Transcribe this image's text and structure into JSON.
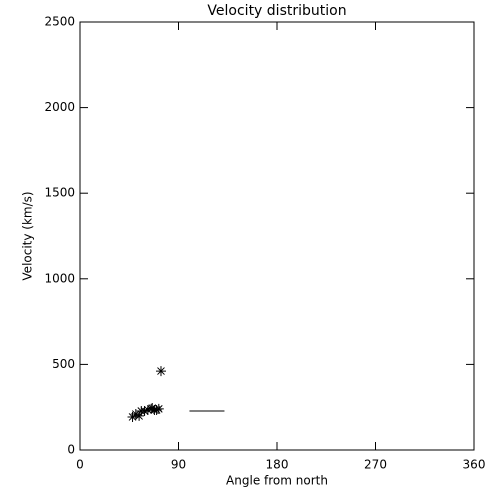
{
  "chart_data": {
    "type": "scatter",
    "title": "Velocity distribution",
    "x_label": "Angle from north",
    "y_label": "Velocity (km/s)",
    "series": [
      {
        "color": "#000000",
        "marker": "asterisk",
        "x": [
          48,
          51,
          54,
          56,
          59,
          62,
          65,
          66,
          68,
          70,
          72,
          74
        ],
        "values": [
          193,
          210,
          199,
          228,
          228,
          234,
          240,
          245,
          234,
          234,
          240,
          461
        ]
      }
    ],
    "segment": {
      "x": [
        100,
        132
      ],
      "y": [
        228,
        228
      ]
    },
    "xlim": [
      0,
      360
    ],
    "xticks": [
      0,
      90,
      180,
      270,
      360
    ],
    "ylim": [
      0,
      2500
    ],
    "yticks": [
      0,
      500,
      1000,
      1500,
      2000,
      2500
    ]
  }
}
